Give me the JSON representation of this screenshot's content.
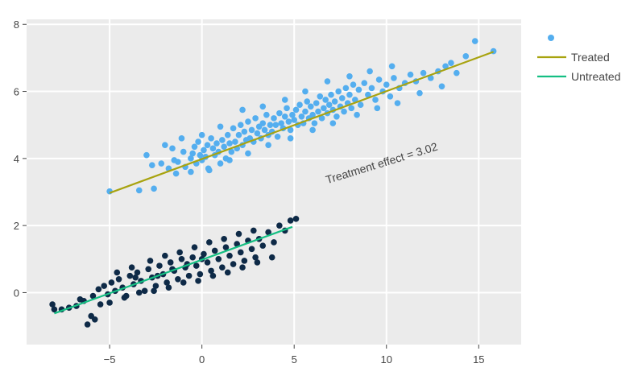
{
  "chart_data": {
    "type": "scatter",
    "xlim": [
      -9.5,
      17.3
    ],
    "ylim": [
      -1.55,
      8.15
    ],
    "x_ticks": [
      -5,
      0,
      5,
      10,
      15
    ],
    "x_tick_labels": [
      "−5",
      "0",
      "5",
      "10",
      "15"
    ],
    "y_ticks": [
      0,
      2,
      4,
      6,
      8
    ],
    "y_tick_labels": [
      "0",
      "2",
      "4",
      "6",
      "8"
    ],
    "grid": true,
    "background": "#ebebeb",
    "legend_position": "top-right",
    "annotation": {
      "text": "Treatment effect = 3.02",
      "x": 9.8,
      "y": 3.75,
      "angle_deg": -17
    },
    "series": [
      {
        "name": "",
        "kind": "points",
        "group": "treated",
        "color": "#54aeef",
        "points": [
          [
            -5.0,
            3.02
          ],
          [
            -3.4,
            3.05
          ],
          [
            -2.6,
            3.1
          ],
          [
            -3.0,
            4.1
          ],
          [
            -2.7,
            3.8
          ],
          [
            -2.2,
            3.85
          ],
          [
            -1.8,
            3.7
          ],
          [
            -1.6,
            4.3
          ],
          [
            -1.5,
            3.95
          ],
          [
            -1.3,
            3.9
          ],
          [
            -1.0,
            4.2
          ],
          [
            -0.9,
            3.75
          ],
          [
            -0.6,
            4.0
          ],
          [
            -0.5,
            4.15
          ],
          [
            -0.4,
            4.35
          ],
          [
            -0.3,
            3.85
          ],
          [
            -0.2,
            4.5
          ],
          [
            -0.1,
            4.1
          ],
          [
            0.0,
            3.95
          ],
          [
            0.1,
            4.25
          ],
          [
            0.2,
            4.05
          ],
          [
            0.3,
            4.4
          ],
          [
            0.35,
            3.7
          ],
          [
            0.5,
            4.6
          ],
          [
            0.6,
            4.3
          ],
          [
            0.7,
            4.1
          ],
          [
            0.8,
            4.45
          ],
          [
            0.9,
            4.2
          ],
          [
            1.0,
            3.85
          ],
          [
            1.1,
            4.55
          ],
          [
            1.2,
            4.35
          ],
          [
            1.3,
            4.0
          ],
          [
            1.4,
            4.7
          ],
          [
            1.5,
            4.45
          ],
          [
            1.6,
            4.2
          ],
          [
            1.7,
            4.9
          ],
          [
            1.8,
            4.5
          ],
          [
            1.9,
            4.3
          ],
          [
            2.0,
            4.7
          ],
          [
            2.1,
            5.0
          ],
          [
            2.2,
            4.4
          ],
          [
            2.3,
            4.8
          ],
          [
            2.4,
            4.55
          ],
          [
            2.5,
            5.1
          ],
          [
            2.6,
            4.6
          ],
          [
            2.7,
            4.85
          ],
          [
            2.8,
            4.5
          ],
          [
            2.9,
            5.2
          ],
          [
            3.0,
            4.75
          ],
          [
            3.1,
            4.95
          ],
          [
            3.2,
            4.6
          ],
          [
            3.3,
            5.05
          ],
          [
            3.4,
            4.85
          ],
          [
            3.5,
            5.3
          ],
          [
            3.6,
            4.7
          ],
          [
            3.7,
            5.0
          ],
          [
            3.8,
            4.8
          ],
          [
            3.9,
            5.2
          ],
          [
            4.0,
            5.0
          ],
          [
            4.1,
            4.65
          ],
          [
            4.2,
            5.35
          ],
          [
            4.3,
            5.05
          ],
          [
            4.4,
            4.9
          ],
          [
            4.5,
            5.25
          ],
          [
            4.6,
            5.5
          ],
          [
            4.7,
            5.1
          ],
          [
            4.8,
            4.85
          ],
          [
            4.9,
            5.3
          ],
          [
            5.0,
            5.15
          ],
          [
            5.1,
            5.45
          ],
          [
            5.2,
            5.0
          ],
          [
            5.3,
            5.6
          ],
          [
            5.4,
            5.25
          ],
          [
            5.5,
            5.05
          ],
          [
            5.6,
            5.4
          ],
          [
            5.7,
            5.7
          ],
          [
            5.8,
            5.2
          ],
          [
            5.9,
            5.55
          ],
          [
            6.0,
            5.3
          ],
          [
            6.1,
            5.05
          ],
          [
            6.2,
            5.65
          ],
          [
            6.3,
            5.4
          ],
          [
            6.4,
            5.85
          ],
          [
            6.5,
            5.2
          ],
          [
            6.6,
            5.5
          ],
          [
            6.7,
            5.75
          ],
          [
            6.8,
            5.35
          ],
          [
            6.9,
            5.6
          ],
          [
            7.0,
            5.9
          ],
          [
            7.1,
            5.45
          ],
          [
            7.2,
            5.7
          ],
          [
            7.3,
            5.25
          ],
          [
            7.4,
            6.0
          ],
          [
            7.5,
            5.55
          ],
          [
            7.6,
            5.8
          ],
          [
            7.7,
            5.4
          ],
          [
            7.8,
            6.1
          ],
          [
            7.9,
            5.65
          ],
          [
            8.0,
            5.9
          ],
          [
            8.1,
            5.5
          ],
          [
            8.2,
            6.2
          ],
          [
            8.3,
            5.75
          ],
          [
            8.5,
            6.05
          ],
          [
            8.6,
            5.6
          ],
          [
            8.8,
            6.25
          ],
          [
            9.0,
            5.9
          ],
          [
            9.2,
            6.1
          ],
          [
            9.4,
            5.75
          ],
          [
            9.6,
            6.35
          ],
          [
            9.8,
            6.0
          ],
          [
            10.0,
            6.2
          ],
          [
            10.2,
            5.85
          ],
          [
            10.4,
            6.4
          ],
          [
            10.7,
            6.1
          ],
          [
            11.0,
            6.25
          ],
          [
            11.3,
            6.5
          ],
          [
            11.6,
            6.3
          ],
          [
            12.0,
            6.55
          ],
          [
            12.4,
            6.4
          ],
          [
            12.8,
            6.6
          ],
          [
            13.2,
            6.75
          ],
          [
            13.5,
            6.85
          ],
          [
            13.8,
            6.55
          ],
          [
            14.3,
            7.05
          ],
          [
            14.8,
            7.5
          ],
          [
            15.8,
            7.2
          ],
          [
            -2.0,
            4.4
          ],
          [
            -1.1,
            4.6
          ],
          [
            0.0,
            4.7
          ],
          [
            1.0,
            4.95
          ],
          [
            2.2,
            5.45
          ],
          [
            3.3,
            5.55
          ],
          [
            4.5,
            5.75
          ],
          [
            5.6,
            6.0
          ],
          [
            6.8,
            6.3
          ],
          [
            8.0,
            6.45
          ],
          [
            9.1,
            6.6
          ],
          [
            10.3,
            6.75
          ],
          [
            -1.4,
            3.55
          ],
          [
            -0.6,
            3.6
          ],
          [
            0.4,
            3.65
          ],
          [
            1.5,
            3.95
          ],
          [
            2.5,
            4.15
          ],
          [
            3.6,
            4.4
          ],
          [
            4.8,
            4.6
          ],
          [
            6.0,
            4.85
          ],
          [
            7.1,
            5.05
          ],
          [
            8.4,
            5.3
          ],
          [
            9.5,
            5.5
          ],
          [
            10.6,
            5.65
          ],
          [
            11.8,
            5.95
          ],
          [
            13.0,
            6.15
          ]
        ]
      },
      {
        "name": "",
        "kind": "points",
        "group": "untreated",
        "color": "#0e2a47",
        "points": [
          [
            -8.1,
            -0.35
          ],
          [
            -8.0,
            -0.5
          ],
          [
            -7.6,
            -0.5
          ],
          [
            -6.6,
            -0.2
          ],
          [
            -6.4,
            -0.25
          ],
          [
            -6.0,
            -0.7
          ],
          [
            -5.8,
            -0.8
          ],
          [
            -6.2,
            -0.95
          ],
          [
            -5.9,
            -0.1
          ],
          [
            -5.6,
            0.1
          ],
          [
            -5.3,
            0.2
          ],
          [
            -5.1,
            -0.05
          ],
          [
            -4.9,
            0.3
          ],
          [
            -4.7,
            0.05
          ],
          [
            -4.5,
            0.4
          ],
          [
            -4.3,
            0.15
          ],
          [
            -4.1,
            -0.1
          ],
          [
            -3.9,
            0.5
          ],
          [
            -3.7,
            0.25
          ],
          [
            -3.5,
            0.6
          ],
          [
            -3.3,
            0.35
          ],
          [
            -3.1,
            0.05
          ],
          [
            -2.9,
            0.7
          ],
          [
            -2.7,
            0.45
          ],
          [
            -2.5,
            0.2
          ],
          [
            -2.3,
            0.8
          ],
          [
            -2.1,
            0.55
          ],
          [
            -1.9,
            0.3
          ],
          [
            -1.7,
            0.9
          ],
          [
            -1.5,
            0.65
          ],
          [
            -1.3,
            0.4
          ],
          [
            -1.1,
            1.0
          ],
          [
            -0.9,
            0.75
          ],
          [
            -0.7,
            0.5
          ],
          [
            -0.5,
            1.05
          ],
          [
            -0.3,
            0.8
          ],
          [
            -0.1,
            0.55
          ],
          [
            0.1,
            1.15
          ],
          [
            0.3,
            0.9
          ],
          [
            0.5,
            0.65
          ],
          [
            0.7,
            1.25
          ],
          [
            0.9,
            1.0
          ],
          [
            1.1,
            0.75
          ],
          [
            1.3,
            1.35
          ],
          [
            1.5,
            1.1
          ],
          [
            1.7,
            0.85
          ],
          [
            1.9,
            1.45
          ],
          [
            2.1,
            1.2
          ],
          [
            2.3,
            0.95
          ],
          [
            2.5,
            1.55
          ],
          [
            2.7,
            1.3
          ],
          [
            2.9,
            1.05
          ],
          [
            3.1,
            1.6
          ],
          [
            3.3,
            1.4
          ],
          [
            3.6,
            1.8
          ],
          [
            3.9,
            1.5
          ],
          [
            4.2,
            2.0
          ],
          [
            4.5,
            1.85
          ],
          [
            4.8,
            2.15
          ],
          [
            5.1,
            2.2
          ],
          [
            -4.6,
            0.6
          ],
          [
            -3.8,
            0.75
          ],
          [
            -2.8,
            0.95
          ],
          [
            -2.0,
            1.1
          ],
          [
            -1.2,
            1.2
          ],
          [
            -0.4,
            1.35
          ],
          [
            0.4,
            1.5
          ],
          [
            1.2,
            1.6
          ],
          [
            2.0,
            1.75
          ],
          [
            2.8,
            1.85
          ],
          [
            -5.0,
            -0.3
          ],
          [
            -4.2,
            -0.15
          ],
          [
            -3.4,
            0.0
          ],
          [
            -2.6,
            0.05
          ],
          [
            -1.8,
            0.15
          ],
          [
            -1.0,
            0.3
          ],
          [
            -0.2,
            0.35
          ],
          [
            0.6,
            0.5
          ],
          [
            1.4,
            0.6
          ],
          [
            2.2,
            0.75
          ],
          [
            3.0,
            0.9
          ],
          [
            3.8,
            1.05
          ],
          [
            -6.8,
            -0.4
          ],
          [
            -7.2,
            -0.45
          ],
          [
            -5.5,
            -0.35
          ],
          [
            -3.6,
            0.45
          ],
          [
            -2.4,
            0.5
          ],
          [
            -1.6,
            0.7
          ],
          [
            -0.8,
            0.85
          ],
          [
            0.0,
            1.0
          ]
        ]
      },
      {
        "name": "Treated",
        "kind": "line",
        "color": "#a8a30f",
        "points": [
          [
            -5.0,
            2.97
          ],
          [
            15.8,
            7.18
          ]
        ]
      },
      {
        "name": "Untreated",
        "kind": "line",
        "color": "#15bf83",
        "points": [
          [
            -8.0,
            -0.62
          ],
          [
            4.9,
            1.96
          ]
        ]
      }
    ]
  }
}
